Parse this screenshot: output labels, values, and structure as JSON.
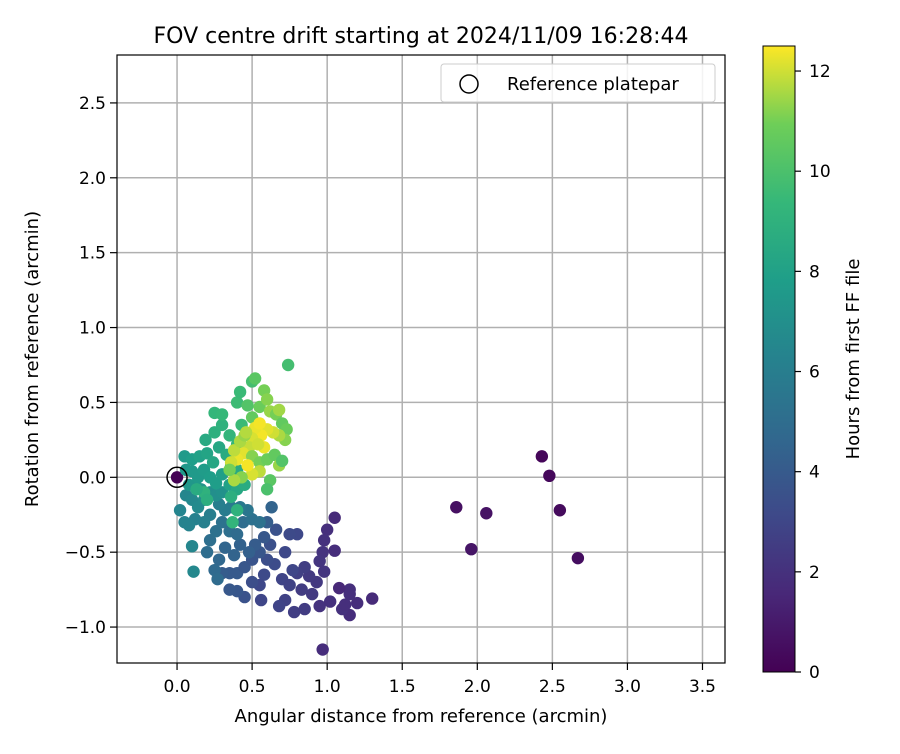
{
  "chart_data": {
    "type": "scatter",
    "title": "FOV centre drift starting at 2024/11/09 16:28:44",
    "xlabel": "Angular distance from reference (arcmin)",
    "ylabel": "Rotation from reference (arcmin)",
    "xlim": [
      -0.4,
      3.65
    ],
    "ylim": [
      -1.24,
      2.82
    ],
    "xticks": [
      "0.0",
      "0.5",
      "1.0",
      "1.5",
      "2.0",
      "2.5",
      "3.0",
      "3.5"
    ],
    "xtick_values": [
      0,
      0.5,
      1,
      1.5,
      2,
      2.5,
      3,
      3.5
    ],
    "yticks": [
      "−1.0",
      "−0.5",
      "0.0",
      "0.5",
      "1.0",
      "1.5",
      "2.0",
      "2.5"
    ],
    "ytick_values": [
      -1,
      -0.5,
      0,
      0.5,
      1,
      1.5,
      2,
      2.5
    ],
    "grid": true,
    "legend": {
      "placement": "top-right",
      "label": "Reference platepar"
    },
    "reference_point": {
      "x": 0,
      "y": 0
    },
    "colorbar": {
      "label": "Hours from first FF file",
      "range": [
        0,
        12.5
      ],
      "ticks": [
        "0",
        "2",
        "4",
        "6",
        "8",
        "10",
        "12"
      ],
      "tick_values": [
        0,
        2,
        4,
        6,
        8,
        10,
        12
      ],
      "colormap": "viridis"
    },
    "points": [
      {
        "x": 2.43,
        "y": 0.14,
        "h": 0.2
      },
      {
        "x": 2.48,
        "y": 0.01,
        "h": 0.3
      },
      {
        "x": 2.55,
        "y": -0.22,
        "h": 0.4
      },
      {
        "x": 2.67,
        "y": -0.54,
        "h": 0.5
      },
      {
        "x": 1.86,
        "y": -0.2,
        "h": 0.6
      },
      {
        "x": 2.06,
        "y": -0.24,
        "h": 0.7
      },
      {
        "x": 1.96,
        "y": -0.48,
        "h": 0.8
      },
      {
        "x": 0.0,
        "y": 0.0,
        "h": 0.0
      },
      {
        "x": 0.97,
        "y": -1.15,
        "h": 1.8
      },
      {
        "x": 1.3,
        "y": -0.81,
        "h": 1.7
      },
      {
        "x": 1.15,
        "y": -0.92,
        "h": 1.8
      },
      {
        "x": 1.15,
        "y": -0.75,
        "h": 1.9
      },
      {
        "x": 1.08,
        "y": -0.74,
        "h": 1.6
      },
      {
        "x": 1.1,
        "y": -0.88,
        "h": 2.0
      },
      {
        "x": 1.05,
        "y": -0.27,
        "h": 1.7
      },
      {
        "x": 1.05,
        "y": -0.49,
        "h": 1.8
      },
      {
        "x": 1.0,
        "y": -0.35,
        "h": 1.9
      },
      {
        "x": 0.98,
        "y": -0.42,
        "h": 2.0
      },
      {
        "x": 0.97,
        "y": -0.5,
        "h": 2.1
      },
      {
        "x": 0.95,
        "y": -0.56,
        "h": 2.2
      },
      {
        "x": 0.98,
        "y": -0.63,
        "h": 2.2
      },
      {
        "x": 0.93,
        "y": -0.7,
        "h": 2.3
      },
      {
        "x": 0.88,
        "y": -0.66,
        "h": 2.4
      },
      {
        "x": 0.9,
        "y": -0.78,
        "h": 2.4
      },
      {
        "x": 0.95,
        "y": -0.86,
        "h": 2.1
      },
      {
        "x": 1.02,
        "y": -0.83,
        "h": 2.0
      },
      {
        "x": 1.12,
        "y": -0.85,
        "h": 1.9
      },
      {
        "x": 1.2,
        "y": -0.84,
        "h": 1.8
      },
      {
        "x": 1.15,
        "y": -0.78,
        "h": 1.9
      },
      {
        "x": 0.85,
        "y": -0.6,
        "h": 2.6
      },
      {
        "x": 0.8,
        "y": -0.64,
        "h": 2.7
      },
      {
        "x": 0.83,
        "y": -0.75,
        "h": 2.5
      },
      {
        "x": 0.78,
        "y": -0.9,
        "h": 2.6
      },
      {
        "x": 0.85,
        "y": -0.88,
        "h": 2.5
      },
      {
        "x": 0.72,
        "y": -0.82,
        "h": 2.8
      },
      {
        "x": 0.68,
        "y": -0.86,
        "h": 2.9
      },
      {
        "x": 0.7,
        "y": -0.68,
        "h": 2.9
      },
      {
        "x": 0.75,
        "y": -0.72,
        "h": 2.8
      },
      {
        "x": 0.77,
        "y": -0.62,
        "h": 3.0
      },
      {
        "x": 0.8,
        "y": -0.38,
        "h": 3.1
      },
      {
        "x": 0.75,
        "y": -0.38,
        "h": 3.2
      },
      {
        "x": 0.72,
        "y": -0.5,
        "h": 3.1
      },
      {
        "x": 0.65,
        "y": -0.58,
        "h": 3.3
      },
      {
        "x": 0.6,
        "y": -0.55,
        "h": 3.4
      },
      {
        "x": 0.62,
        "y": -0.45,
        "h": 3.5
      },
      {
        "x": 0.66,
        "y": -0.35,
        "h": 3.6
      },
      {
        "x": 0.58,
        "y": -0.65,
        "h": 3.2
      },
      {
        "x": 0.55,
        "y": -0.72,
        "h": 3.1
      },
      {
        "x": 0.5,
        "y": -0.7,
        "h": 3.4
      },
      {
        "x": 0.56,
        "y": -0.82,
        "h": 3.0
      },
      {
        "x": 0.45,
        "y": -0.8,
        "h": 3.6
      },
      {
        "x": 0.4,
        "y": -0.76,
        "h": 3.8
      },
      {
        "x": 0.35,
        "y": -0.75,
        "h": 3.9
      },
      {
        "x": 0.35,
        "y": -0.64,
        "h": 4.0
      },
      {
        "x": 0.4,
        "y": -0.64,
        "h": 4.0
      },
      {
        "x": 0.3,
        "y": -0.64,
        "h": 4.1
      },
      {
        "x": 0.45,
        "y": -0.6,
        "h": 3.8
      },
      {
        "x": 0.5,
        "y": -0.55,
        "h": 3.7
      },
      {
        "x": 0.55,
        "y": -0.5,
        "h": 3.8
      },
      {
        "x": 0.58,
        "y": -0.4,
        "h": 3.9
      },
      {
        "x": 0.6,
        "y": -0.3,
        "h": 4.2
      },
      {
        "x": 0.63,
        "y": -0.2,
        "h": 4.5
      },
      {
        "x": 0.52,
        "y": -0.45,
        "h": 4.1
      },
      {
        "x": 0.48,
        "y": -0.5,
        "h": 4.3
      },
      {
        "x": 0.42,
        "y": -0.45,
        "h": 4.4
      },
      {
        "x": 0.38,
        "y": -0.52,
        "h": 4.5
      },
      {
        "x": 0.32,
        "y": -0.47,
        "h": 4.6
      },
      {
        "x": 0.28,
        "y": -0.55,
        "h": 4.7
      },
      {
        "x": 0.25,
        "y": -0.62,
        "h": 4.8
      },
      {
        "x": 0.27,
        "y": -0.68,
        "h": 4.9
      },
      {
        "x": 0.2,
        "y": -0.5,
        "h": 5.0
      },
      {
        "x": 0.22,
        "y": -0.42,
        "h": 5.1
      },
      {
        "x": 0.26,
        "y": -0.36,
        "h": 5.2
      },
      {
        "x": 0.3,
        "y": -0.3,
        "h": 5.3
      },
      {
        "x": 0.35,
        "y": -0.36,
        "h": 5.1
      },
      {
        "x": 0.4,
        "y": -0.38,
        "h": 4.9
      },
      {
        "x": 0.44,
        "y": -0.3,
        "h": 5.0
      },
      {
        "x": 0.5,
        "y": -0.28,
        "h": 5.2
      },
      {
        "x": 0.55,
        "y": -0.3,
        "h": 5.3
      },
      {
        "x": 0.47,
        "y": -0.22,
        "h": 5.5
      },
      {
        "x": 0.42,
        "y": -0.2,
        "h": 5.7
      },
      {
        "x": 0.36,
        "y": -0.2,
        "h": 5.8
      },
      {
        "x": 0.32,
        "y": -0.22,
        "h": 5.9
      },
      {
        "x": 0.28,
        "y": -0.18,
        "h": 6.0
      },
      {
        "x": 0.22,
        "y": -0.25,
        "h": 6.0
      },
      {
        "x": 0.18,
        "y": -0.3,
        "h": 6.1
      },
      {
        "x": 0.12,
        "y": -0.28,
        "h": 6.2
      },
      {
        "x": 0.08,
        "y": -0.32,
        "h": 6.3
      },
      {
        "x": 0.05,
        "y": -0.3,
        "h": 6.3
      },
      {
        "x": 0.02,
        "y": -0.22,
        "h": 6.4
      },
      {
        "x": 0.1,
        "y": -0.46,
        "h": 6.5
      },
      {
        "x": 0.11,
        "y": -0.63,
        "h": 6.6
      },
      {
        "x": 0.06,
        "y": -0.12,
        "h": 6.5
      },
      {
        "x": 0.1,
        "y": -0.15,
        "h": 6.6
      },
      {
        "x": 0.14,
        "y": -0.2,
        "h": 6.7
      },
      {
        "x": 0.18,
        "y": -0.15,
        "h": 6.8
      },
      {
        "x": 0.22,
        "y": -0.1,
        "h": 6.9
      },
      {
        "x": 0.26,
        "y": -0.12,
        "h": 7.0
      },
      {
        "x": 0.3,
        "y": -0.1,
        "h": 7.1
      },
      {
        "x": 0.16,
        "y": -0.08,
        "h": 7.2
      },
      {
        "x": 0.12,
        "y": -0.05,
        "h": 7.3
      },
      {
        "x": 0.08,
        "y": -0.05,
        "h": 7.4
      },
      {
        "x": 0.06,
        "y": 0.05,
        "h": 7.5
      },
      {
        "x": 0.1,
        "y": 0.04,
        "h": 7.6
      },
      {
        "x": 0.14,
        "y": 0.0,
        "h": 7.6
      },
      {
        "x": 0.18,
        "y": 0.05,
        "h": 7.7
      },
      {
        "x": 0.22,
        "y": 0.0,
        "h": 7.8
      },
      {
        "x": 0.26,
        "y": -0.04,
        "h": 7.8
      },
      {
        "x": 0.3,
        "y": 0.02,
        "h": 7.9
      },
      {
        "x": 0.05,
        "y": 0.14,
        "h": 7.6
      },
      {
        "x": 0.1,
        "y": 0.12,
        "h": 7.8
      },
      {
        "x": 0.15,
        "y": 0.14,
        "h": 8.0
      },
      {
        "x": 0.2,
        "y": 0.16,
        "h": 8.2
      },
      {
        "x": 0.24,
        "y": 0.1,
        "h": 8.3
      },
      {
        "x": 0.19,
        "y": 0.25,
        "h": 8.5
      },
      {
        "x": 0.28,
        "y": 0.2,
        "h": 8.4
      },
      {
        "x": 0.33,
        "y": 0.15,
        "h": 8.6
      },
      {
        "x": 0.36,
        "y": 0.08,
        "h": 8.3
      },
      {
        "x": 0.4,
        "y": 0.05,
        "h": 8.5
      },
      {
        "x": 0.35,
        "y": -0.05,
        "h": 8.0
      },
      {
        "x": 0.4,
        "y": -0.08,
        "h": 8.4
      },
      {
        "x": 0.45,
        "y": -0.05,
        "h": 8.6
      },
      {
        "x": 0.36,
        "y": -0.13,
        "h": 8.8
      },
      {
        "x": 0.4,
        "y": -0.22,
        "h": 9.0
      },
      {
        "x": 0.37,
        "y": -0.3,
        "h": 9.2
      },
      {
        "x": 0.18,
        "y": -0.1,
        "h": 9.0
      },
      {
        "x": 0.2,
        "y": -0.15,
        "h": 8.8
      },
      {
        "x": 0.13,
        "y": -0.08,
        "h": 8.6
      },
      {
        "x": 0.25,
        "y": 0.3,
        "h": 8.9
      },
      {
        "x": 0.3,
        "y": 0.35,
        "h": 9.0
      },
      {
        "x": 0.25,
        "y": 0.43,
        "h": 9.3
      },
      {
        "x": 0.3,
        "y": 0.42,
        "h": 9.4
      },
      {
        "x": 0.35,
        "y": 0.28,
        "h": 9.2
      },
      {
        "x": 0.4,
        "y": 0.22,
        "h": 9.3
      },
      {
        "x": 0.43,
        "y": 0.35,
        "h": 9.5
      },
      {
        "x": 0.4,
        "y": 0.5,
        "h": 9.6
      },
      {
        "x": 0.42,
        "y": 0.57,
        "h": 9.5
      },
      {
        "x": 0.5,
        "y": 0.64,
        "h": 9.8
      },
      {
        "x": 0.52,
        "y": 0.66,
        "h": 10.4
      },
      {
        "x": 0.47,
        "y": 0.48,
        "h": 10.2
      },
      {
        "x": 0.5,
        "y": 0.4,
        "h": 10.6
      },
      {
        "x": 0.55,
        "y": 0.47,
        "h": 10.8
      },
      {
        "x": 0.58,
        "y": 0.58,
        "h": 11.0
      },
      {
        "x": 0.6,
        "y": 0.52,
        "h": 11.2
      },
      {
        "x": 0.62,
        "y": 0.44,
        "h": 11.4
      },
      {
        "x": 0.66,
        "y": 0.42,
        "h": 11.0
      },
      {
        "x": 0.68,
        "y": 0.45,
        "h": 11.5
      },
      {
        "x": 0.7,
        "y": 0.36,
        "h": 10.6
      },
      {
        "x": 0.73,
        "y": 0.32,
        "h": 10.8
      },
      {
        "x": 0.72,
        "y": 0.25,
        "h": 11.2
      },
      {
        "x": 0.68,
        "y": 0.28,
        "h": 11.6
      },
      {
        "x": 0.64,
        "y": 0.3,
        "h": 12.0
      },
      {
        "x": 0.6,
        "y": 0.32,
        "h": 12.2
      },
      {
        "x": 0.56,
        "y": 0.28,
        "h": 12.4
      },
      {
        "x": 0.52,
        "y": 0.33,
        "h": 12.3
      },
      {
        "x": 0.5,
        "y": 0.26,
        "h": 12.1
      },
      {
        "x": 0.48,
        "y": 0.2,
        "h": 11.9
      },
      {
        "x": 0.44,
        "y": 0.16,
        "h": 12.2
      },
      {
        "x": 0.4,
        "y": 0.12,
        "h": 12.3
      },
      {
        "x": 0.36,
        "y": 0.1,
        "h": 12.0
      },
      {
        "x": 0.38,
        "y": 0.18,
        "h": 11.8
      },
      {
        "x": 0.42,
        "y": 0.24,
        "h": 11.6
      },
      {
        "x": 0.45,
        "y": 0.28,
        "h": 11.4
      },
      {
        "x": 0.5,
        "y": 0.14,
        "h": 11.2
      },
      {
        "x": 0.55,
        "y": 0.1,
        "h": 11.0
      },
      {
        "x": 0.6,
        "y": 0.12,
        "h": 10.8
      },
      {
        "x": 0.65,
        "y": 0.15,
        "h": 10.6
      },
      {
        "x": 0.68,
        "y": 0.08,
        "h": 11.4
      },
      {
        "x": 0.7,
        "y": 0.11,
        "h": 10.2
      },
      {
        "x": 0.62,
        "y": -0.02,
        "h": 10.4
      },
      {
        "x": 0.6,
        "y": -0.08,
        "h": 10.0
      },
      {
        "x": 0.55,
        "y": 0.04,
        "h": 11.8
      },
      {
        "x": 0.5,
        "y": 0.02,
        "h": 12.1
      },
      {
        "x": 0.47,
        "y": 0.08,
        "h": 12.4
      },
      {
        "x": 0.43,
        "y": 0.0,
        "h": 11.2
      },
      {
        "x": 0.38,
        "y": -0.02,
        "h": 11.6
      },
      {
        "x": 0.35,
        "y": 0.05,
        "h": 11.0
      },
      {
        "x": 0.58,
        "y": 0.2,
        "h": 12.3
      },
      {
        "x": 0.54,
        "y": 0.22,
        "h": 12.0
      },
      {
        "x": 0.46,
        "y": 0.3,
        "h": 11.7
      },
      {
        "x": 0.74,
        "y": 0.75,
        "h": 9.8
      },
      {
        "x": 0.55,
        "y": 0.36,
        "h": 12.4
      }
    ]
  }
}
